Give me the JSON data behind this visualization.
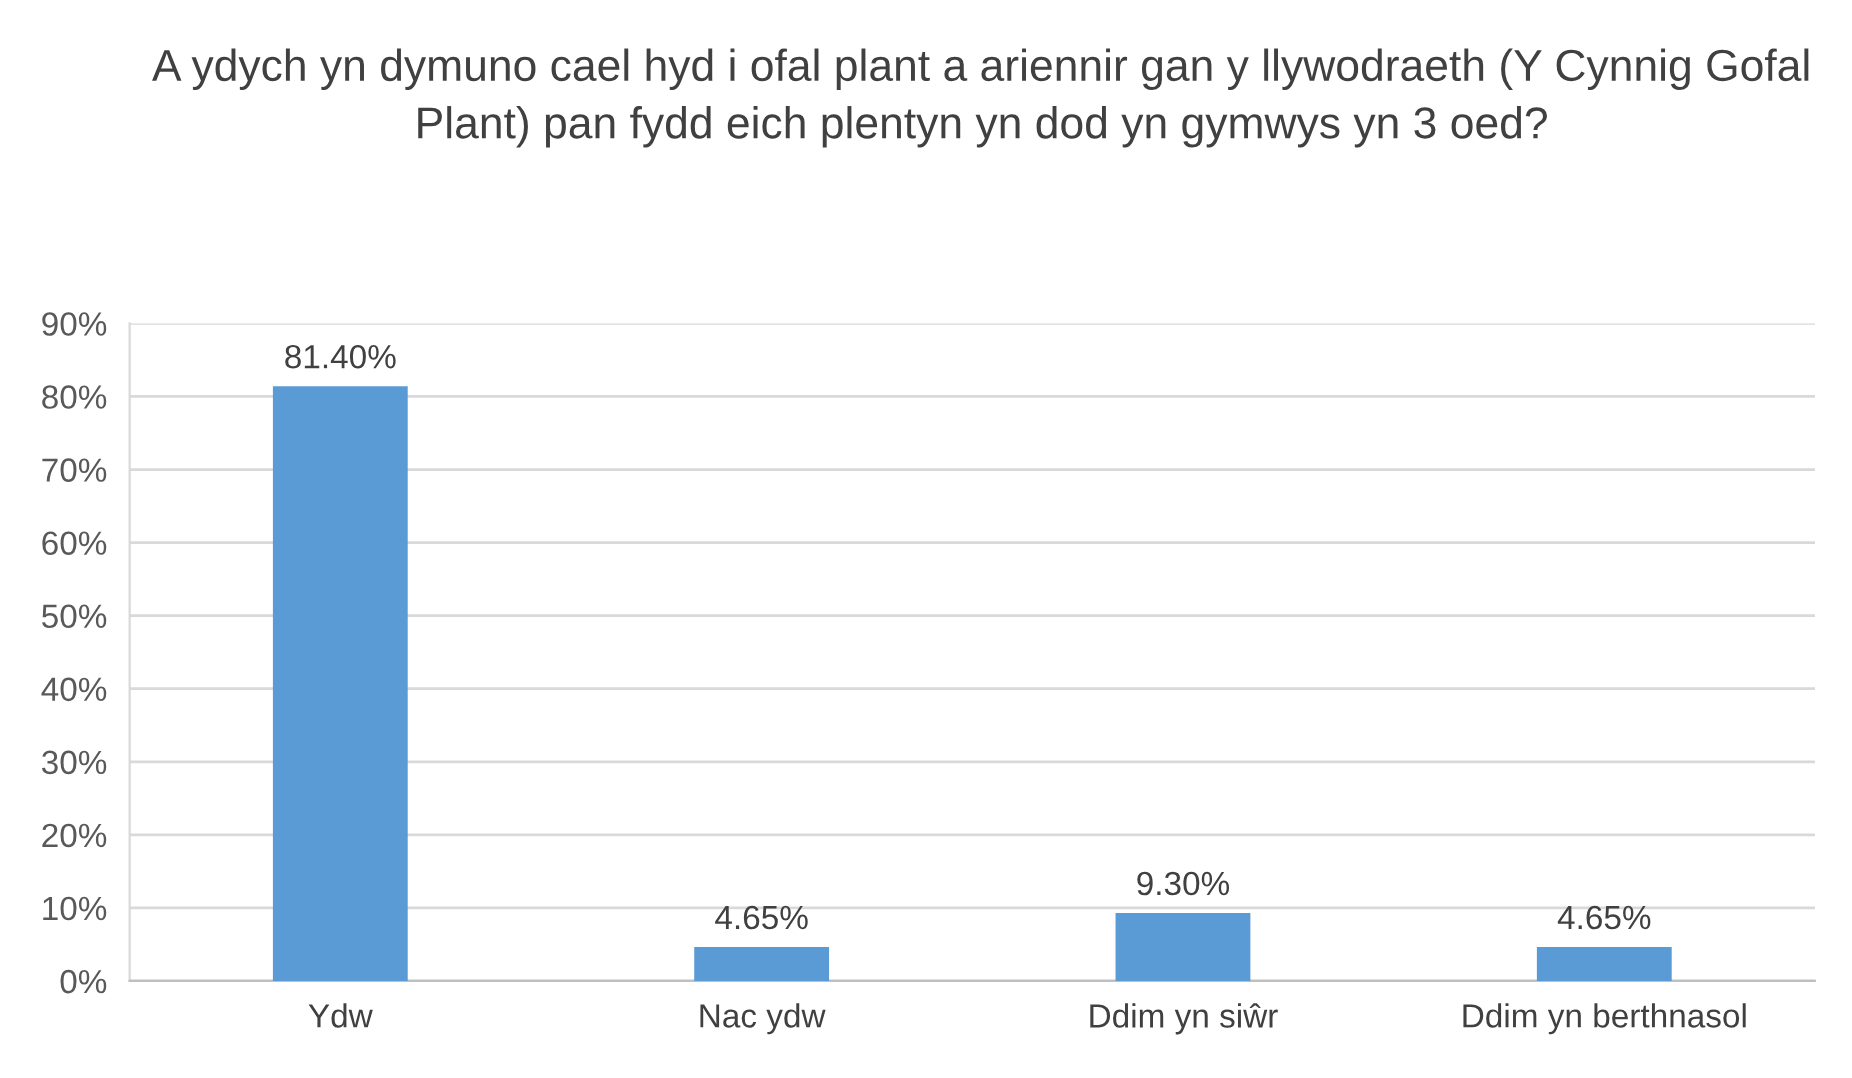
{
  "chart_data": {
    "type": "bar",
    "title": "A ydych yn dymuno cael hyd i ofal plant a ariennir gan y llywodraeth (Y Cynnig Gofal Plant) pan fydd eich plentyn yn dod yn gymwys yn 3 oed?",
    "categories": [
      "Ydw",
      "Nac ydw",
      "Ddim yn siŵr",
      "Ddim yn berthnasol"
    ],
    "values": [
      81.4,
      4.65,
      9.3,
      4.65
    ],
    "value_labels": [
      "81.40%",
      "4.65%",
      "9.30%",
      "4.65%"
    ],
    "color": "#5b9bd5",
    "ylim": [
      0,
      90
    ],
    "yticks": [
      {
        "value": 0,
        "label": "0%"
      },
      {
        "value": 10,
        "label": "10%"
      },
      {
        "value": 20,
        "label": "20%"
      },
      {
        "value": 30,
        "label": "30%"
      },
      {
        "value": 40,
        "label": "40%"
      },
      {
        "value": 50,
        "label": "50%"
      },
      {
        "value": 60,
        "label": "60%"
      },
      {
        "value": 70,
        "label": "70%"
      },
      {
        "value": 80,
        "label": "80%"
      },
      {
        "value": 90,
        "label": "90%"
      }
    ],
    "grid": "y",
    "legend": false
  }
}
